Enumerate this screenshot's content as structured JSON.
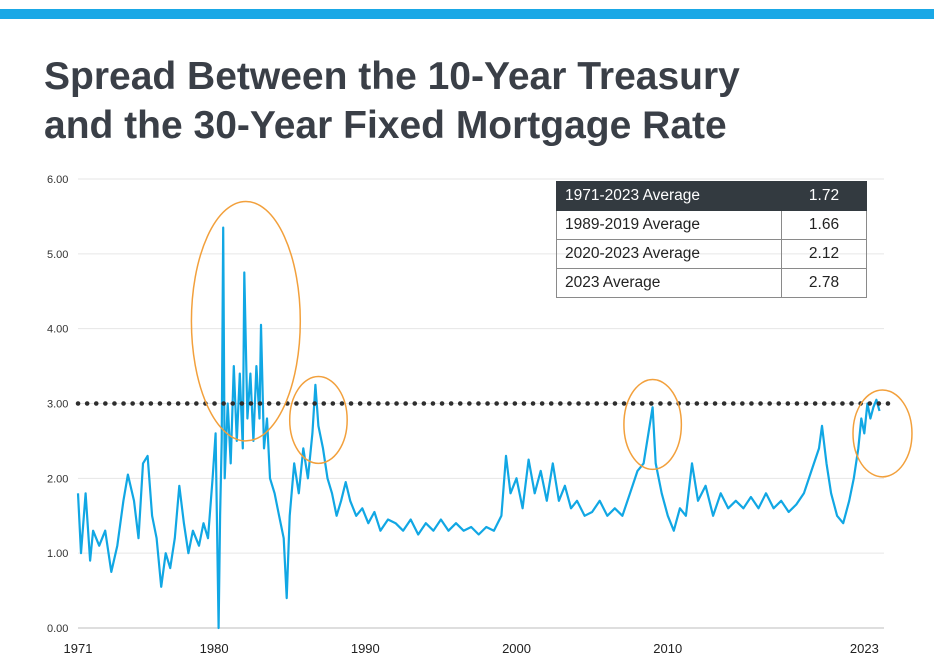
{
  "title_lines": [
    "Spread Between the 10-Year Treasury",
    "and the 30-Year Fixed Mortgage Rate"
  ],
  "colors": {
    "accent": "#1aa8e6",
    "title": "#3a3f47",
    "series": "#11a7e4",
    "highlight_circle": "#f2a03c",
    "reference_line": "#2e2e2e",
    "table_header_bg": "#333a40"
  },
  "table": {
    "rows": [
      {
        "label": "1971-2023 Average",
        "value": "1.72"
      },
      {
        "label": "1989-2019 Average",
        "value": "1.66"
      },
      {
        "label": "2020-2023 Average",
        "value": "2.12"
      },
      {
        "label": "2023 Average",
        "value": "2.78"
      }
    ]
  },
  "chart_data": {
    "type": "line",
    "title": "Spread Between the 10-Year Treasury and the 30-Year Fixed Mortgage Rate",
    "xlabel": "",
    "ylabel": "",
    "xlim": [
      1971,
      2024.3
    ],
    "ylim": [
      0,
      6
    ],
    "ytick_values": [
      0,
      1,
      2,
      3,
      4,
      5,
      6
    ],
    "ytick_labels": [
      "0.00",
      "1.00",
      "2.00",
      "3.00",
      "4.00",
      "5.00",
      "6.00"
    ],
    "xticks": [
      {
        "value": 1971,
        "label": "1971"
      },
      {
        "value": 1980,
        "label": "1980"
      },
      {
        "value": 1990,
        "label": "1990"
      },
      {
        "value": 2000,
        "label": "2000"
      },
      {
        "value": 2010,
        "label": "2010"
      },
      {
        "value": 2023,
        "label": "2023"
      }
    ],
    "grid": true,
    "reference_line": {
      "y": 3.0,
      "style": "dotted"
    },
    "series": [
      {
        "values": [
          [
            1971.0,
            1.8
          ],
          [
            1971.2,
            1.0
          ],
          [
            1971.5,
            1.8
          ],
          [
            1971.8,
            0.9
          ],
          [
            1972.0,
            1.3
          ],
          [
            1972.4,
            1.1
          ],
          [
            1972.8,
            1.3
          ],
          [
            1973.2,
            0.75
          ],
          [
            1973.6,
            1.1
          ],
          [
            1974.0,
            1.7
          ],
          [
            1974.3,
            2.05
          ],
          [
            1974.7,
            1.7
          ],
          [
            1975.0,
            1.2
          ],
          [
            1975.3,
            2.2
          ],
          [
            1975.6,
            2.3
          ],
          [
            1975.9,
            1.5
          ],
          [
            1976.2,
            1.2
          ],
          [
            1976.5,
            0.55
          ],
          [
            1976.8,
            1.0
          ],
          [
            1977.1,
            0.8
          ],
          [
            1977.4,
            1.2
          ],
          [
            1977.7,
            1.9
          ],
          [
            1978.0,
            1.4
          ],
          [
            1978.3,
            1.0
          ],
          [
            1978.6,
            1.3
          ],
          [
            1979.0,
            1.1
          ],
          [
            1979.3,
            1.4
          ],
          [
            1979.6,
            1.2
          ],
          [
            1979.9,
            2.0
          ],
          [
            1980.1,
            2.6
          ],
          [
            1980.3,
            0.0
          ],
          [
            1980.4,
            1.5
          ],
          [
            1980.5,
            2.5
          ],
          [
            1980.6,
            5.35
          ],
          [
            1980.7,
            2.0
          ],
          [
            1980.9,
            3.0
          ],
          [
            1981.1,
            2.2
          ],
          [
            1981.3,
            3.5
          ],
          [
            1981.5,
            2.5
          ],
          [
            1981.7,
            3.4
          ],
          [
            1981.9,
            2.4
          ],
          [
            1982.0,
            4.75
          ],
          [
            1982.2,
            2.8
          ],
          [
            1982.4,
            3.4
          ],
          [
            1982.6,
            2.5
          ],
          [
            1982.8,
            3.5
          ],
          [
            1983.0,
            2.8
          ],
          [
            1983.1,
            4.05
          ],
          [
            1983.3,
            2.4
          ],
          [
            1983.5,
            2.8
          ],
          [
            1983.7,
            2.0
          ],
          [
            1984.0,
            1.8
          ],
          [
            1984.3,
            1.5
          ],
          [
            1984.6,
            1.2
          ],
          [
            1984.8,
            0.4
          ],
          [
            1985.0,
            1.5
          ],
          [
            1985.3,
            2.2
          ],
          [
            1985.6,
            1.8
          ],
          [
            1985.9,
            2.4
          ],
          [
            1986.2,
            2.0
          ],
          [
            1986.5,
            2.6
          ],
          [
            1986.7,
            3.25
          ],
          [
            1986.9,
            2.7
          ],
          [
            1987.2,
            2.4
          ],
          [
            1987.5,
            2.0
          ],
          [
            1987.8,
            1.8
          ],
          [
            1988.1,
            1.5
          ],
          [
            1988.4,
            1.7
          ],
          [
            1988.7,
            1.95
          ],
          [
            1989.0,
            1.7
          ],
          [
            1989.4,
            1.5
          ],
          [
            1989.8,
            1.6
          ],
          [
            1990.2,
            1.4
          ],
          [
            1990.6,
            1.55
          ],
          [
            1991.0,
            1.3
          ],
          [
            1991.5,
            1.45
          ],
          [
            1992.0,
            1.4
          ],
          [
            1992.5,
            1.3
          ],
          [
            1993.0,
            1.45
          ],
          [
            1993.5,
            1.25
          ],
          [
            1994.0,
            1.4
          ],
          [
            1994.5,
            1.3
          ],
          [
            1995.0,
            1.45
          ],
          [
            1995.5,
            1.3
          ],
          [
            1996.0,
            1.4
          ],
          [
            1996.5,
            1.3
          ],
          [
            1997.0,
            1.35
          ],
          [
            1997.5,
            1.25
          ],
          [
            1998.0,
            1.35
          ],
          [
            1998.5,
            1.3
          ],
          [
            1999.0,
            1.5
          ],
          [
            1999.3,
            2.3
          ],
          [
            1999.6,
            1.8
          ],
          [
            2000.0,
            2.0
          ],
          [
            2000.4,
            1.6
          ],
          [
            2000.8,
            2.25
          ],
          [
            2001.2,
            1.8
          ],
          [
            2001.6,
            2.1
          ],
          [
            2002.0,
            1.7
          ],
          [
            2002.4,
            2.2
          ],
          [
            2002.8,
            1.7
          ],
          [
            2003.2,
            1.9
          ],
          [
            2003.6,
            1.6
          ],
          [
            2004.0,
            1.7
          ],
          [
            2004.5,
            1.5
          ],
          [
            2005.0,
            1.55
          ],
          [
            2005.5,
            1.7
          ],
          [
            2006.0,
            1.5
          ],
          [
            2006.5,
            1.6
          ],
          [
            2007.0,
            1.5
          ],
          [
            2007.5,
            1.8
          ],
          [
            2008.0,
            2.1
          ],
          [
            2008.4,
            2.2
          ],
          [
            2008.8,
            2.7
          ],
          [
            2009.0,
            2.95
          ],
          [
            2009.2,
            2.2
          ],
          [
            2009.6,
            1.8
          ],
          [
            2010.0,
            1.5
          ],
          [
            2010.4,
            1.3
          ],
          [
            2010.8,
            1.6
          ],
          [
            2011.2,
            1.5
          ],
          [
            2011.6,
            2.2
          ],
          [
            2012.0,
            1.7
          ],
          [
            2012.5,
            1.9
          ],
          [
            2013.0,
            1.5
          ],
          [
            2013.5,
            1.8
          ],
          [
            2014.0,
            1.6
          ],
          [
            2014.5,
            1.7
          ],
          [
            2015.0,
            1.6
          ],
          [
            2015.5,
            1.75
          ],
          [
            2016.0,
            1.6
          ],
          [
            2016.5,
            1.8
          ],
          [
            2017.0,
            1.6
          ],
          [
            2017.5,
            1.7
          ],
          [
            2018.0,
            1.55
          ],
          [
            2018.5,
            1.65
          ],
          [
            2019.0,
            1.8
          ],
          [
            2019.5,
            2.1
          ],
          [
            2020.0,
            2.4
          ],
          [
            2020.2,
            2.7
          ],
          [
            2020.5,
            2.2
          ],
          [
            2020.8,
            1.8
          ],
          [
            2021.2,
            1.5
          ],
          [
            2021.6,
            1.4
          ],
          [
            2022.0,
            1.7
          ],
          [
            2022.3,
            2.0
          ],
          [
            2022.6,
            2.4
          ],
          [
            2022.8,
            2.8
          ],
          [
            2023.0,
            2.6
          ],
          [
            2023.2,
            3.0
          ],
          [
            2023.4,
            2.8
          ],
          [
            2023.6,
            2.95
          ],
          [
            2023.8,
            3.05
          ],
          [
            2024.0,
            2.9
          ]
        ]
      }
    ],
    "annotations": [
      {
        "type": "ellipse",
        "cx": 1982.1,
        "cy": 4.1,
        "rx": 3.6,
        "ry": 1.6
      },
      {
        "type": "ellipse",
        "cx": 1986.9,
        "cy": 2.78,
        "rx": 1.9,
        "ry": 0.58
      },
      {
        "type": "ellipse",
        "cx": 2009.0,
        "cy": 2.72,
        "rx": 1.9,
        "ry": 0.6
      },
      {
        "type": "ellipse",
        "cx": 2024.2,
        "cy": 2.6,
        "rx": 1.95,
        "ry": 0.58
      }
    ]
  }
}
